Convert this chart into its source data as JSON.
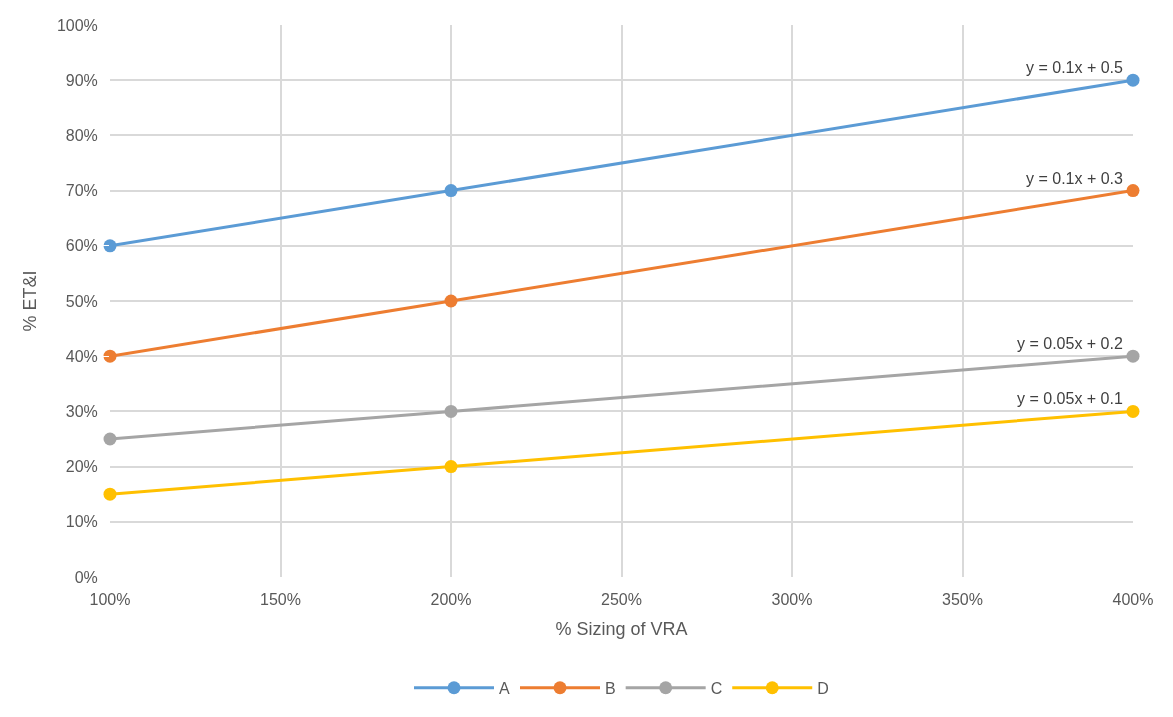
{
  "chart_data": {
    "type": "line",
    "xlabel": "% Sizing of VRA",
    "ylabel": "% ET&I",
    "x": [
      100,
      200,
      400
    ],
    "series": [
      {
        "name": "A",
        "color": "#5b9bd5",
        "values": [
          60,
          70,
          90
        ]
      },
      {
        "name": "B",
        "color": "#ed7d31",
        "values": [
          40,
          50,
          70
        ]
      },
      {
        "name": "C",
        "color": "#a5a5a5",
        "values": [
          25,
          30,
          40
        ]
      },
      {
        "name": "D",
        "color": "#ffc000",
        "values": [
          15,
          20,
          30
        ]
      }
    ],
    "xlim": [
      100,
      400
    ],
    "xticks": [
      {
        "value": 100,
        "label": "100%"
      },
      {
        "value": 150,
        "label": "150%"
      },
      {
        "value": 200,
        "label": "200%"
      },
      {
        "value": 250,
        "label": "250%"
      },
      {
        "value": 300,
        "label": "300%"
      },
      {
        "value": 350,
        "label": "350%"
      },
      {
        "value": 400,
        "label": "400%"
      }
    ],
    "ylim": [
      0,
      100
    ],
    "yticks": [
      {
        "value": 0,
        "label": "0%"
      },
      {
        "value": 10,
        "label": "10%"
      },
      {
        "value": 20,
        "label": "20%"
      },
      {
        "value": 30,
        "label": "30%"
      },
      {
        "value": 40,
        "label": "40%"
      },
      {
        "value": 50,
        "label": "50%"
      },
      {
        "value": 60,
        "label": "60%"
      },
      {
        "value": 70,
        "label": "70%"
      },
      {
        "value": 80,
        "label": "80%"
      },
      {
        "value": 90,
        "label": "90%"
      },
      {
        "value": 100,
        "label": "100%"
      }
    ],
    "annotations": [
      "y = 0.1x + 0.5",
      "y = 0.1x + 0.3",
      "y = 0.05x + 0.2",
      "y = 0.05x + 0.1"
    ],
    "grid": true,
    "legend": "bottom",
    "marker": "circle",
    "line_style": "solid"
  }
}
